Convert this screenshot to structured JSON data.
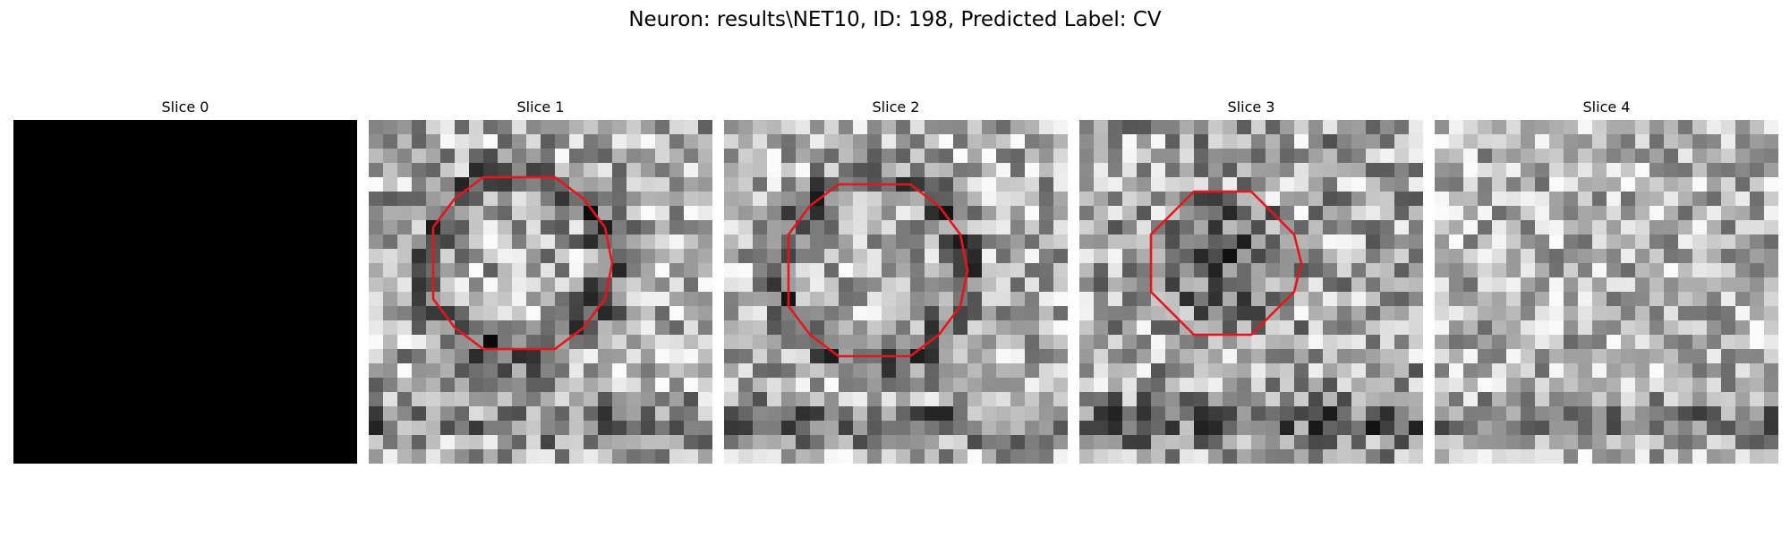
{
  "figure": {
    "title": "Neuron: results\\NET10, ID: 198, Predicted Label: CV"
  },
  "panels": [
    {
      "title": "Slice 0",
      "has_contour": false,
      "blank": true
    },
    {
      "title": "Slice 1",
      "has_contour": true,
      "blank": false
    },
    {
      "title": "Slice 2",
      "has_contour": true,
      "blank": false
    },
    {
      "title": "Slice 3",
      "has_contour": true,
      "blank": false
    },
    {
      "title": "Slice 4",
      "has_contour": false,
      "blank": false
    }
  ],
  "colors": {
    "contour": "#e8141c",
    "blank_slice": "#000000"
  }
}
